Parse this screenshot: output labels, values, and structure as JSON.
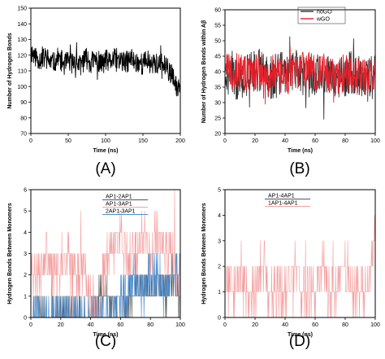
{
  "chart_data": [
    {
      "panel_label": "(A)",
      "type": "line",
      "xlabel": "Time (ns)",
      "ylabel": "Number of Hydrogen Bonds",
      "xlim": [
        0,
        200
      ],
      "ylim": [
        70,
        150
      ],
      "xticks": [
        0,
        50,
        100,
        150,
        200
      ],
      "yticks": [
        70,
        80,
        90,
        100,
        110,
        120,
        130,
        140,
        150
      ],
      "series": [
        {
          "color": "#000000",
          "x": [
            0,
            5,
            10,
            15,
            20,
            25,
            30,
            35,
            40,
            45,
            50,
            55,
            60,
            65,
            70,
            75,
            80,
            85,
            90,
            95,
            100,
            105,
            110,
            115,
            120,
            125,
            130,
            135,
            140,
            145,
            150,
            155,
            160,
            165,
            170,
            175,
            180,
            185,
            190,
            195,
            200
          ],
          "y": [
            122,
            120,
            118,
            117,
            119,
            116,
            115,
            118,
            117,
            114,
            116,
            115,
            117,
            113,
            116,
            118,
            115,
            117,
            116,
            114,
            117,
            115,
            118,
            116,
            117,
            115,
            116,
            118,
            115,
            116,
            114,
            117,
            115,
            116,
            113,
            115,
            112,
            110,
            106,
            98,
            104
          ]
        }
      ]
    },
    {
      "panel_label": "(B)",
      "type": "line",
      "xlabel": "Time (ns)",
      "ylabel": "Number of Hydrogen Bonds within Aβ",
      "xlim": [
        0,
        100
      ],
      "ylim": [
        20,
        60
      ],
      "xticks": [
        0,
        20,
        40,
        60,
        80,
        100
      ],
      "yticks": [
        20,
        25,
        30,
        35,
        40,
        45,
        50,
        55,
        60
      ],
      "legend": "top-right",
      "series": [
        {
          "name": "noGO",
          "color": "#333333",
          "x": [
            0,
            5,
            10,
            15,
            20,
            25,
            30,
            35,
            40,
            45,
            50,
            55,
            60,
            65,
            70,
            75,
            80,
            85,
            90,
            95,
            100
          ],
          "y": [
            40,
            38,
            37,
            39,
            41,
            40,
            38,
            39,
            40,
            41,
            40,
            38,
            39,
            40,
            38,
            37,
            39,
            40,
            38,
            37,
            39
          ]
        },
        {
          "name": "wGO",
          "color": "#e8202a",
          "x": [
            0,
            5,
            10,
            15,
            20,
            25,
            30,
            35,
            40,
            45,
            50,
            55,
            60,
            65,
            70,
            75,
            80,
            85,
            90,
            95,
            100
          ],
          "y": [
            42,
            40,
            41,
            39,
            40,
            41,
            39,
            40,
            38,
            39,
            40,
            41,
            39,
            40,
            39,
            38,
            40,
            39,
            38,
            39,
            40
          ]
        }
      ]
    },
    {
      "panel_label": "(C)",
      "type": "line",
      "xlabel": "Time (ns)",
      "ylabel": "Hydrogen Bonds Between Monomers",
      "xlim": [
        0,
        100
      ],
      "ylim": [
        0,
        6
      ],
      "xticks": [
        0,
        20,
        40,
        60,
        80,
        100
      ],
      "yticks": [
        0,
        1,
        2,
        3,
        4,
        5,
        6
      ],
      "legend": "top-right",
      "series": [
        {
          "name": "AP1-2AP1",
          "color": "#555555",
          "x": [
            0,
            10,
            20,
            30,
            40,
            45,
            50,
            55,
            60,
            65,
            70,
            75,
            80,
            85,
            90,
            95,
            100
          ],
          "y": [
            0,
            0,
            0,
            0,
            0,
            1,
            1,
            0,
            0,
            1,
            1,
            2,
            1,
            2,
            1,
            2,
            1
          ]
        },
        {
          "name": "AP1-3AP1",
          "color": "#f4a0a0",
          "x": [
            0,
            5,
            10,
            15,
            20,
            25,
            30,
            35,
            40,
            45,
            50,
            55,
            60,
            65,
            70,
            75,
            80,
            85,
            90,
            95,
            100
          ],
          "y": [
            2,
            2,
            3,
            2,
            2,
            3,
            2,
            2,
            1,
            0,
            3,
            3,
            4,
            3,
            3,
            4,
            3,
            4,
            3,
            3,
            2
          ]
        },
        {
          "name": "2AP1-3AP1",
          "color": "#4f8fd0",
          "x": [
            0,
            10,
            20,
            30,
            40,
            50,
            55,
            60,
            65,
            70,
            75,
            80,
            85,
            90,
            95,
            100
          ],
          "y": [
            0,
            0,
            0,
            0,
            0,
            0,
            0,
            1,
            1,
            2,
            1,
            2,
            2,
            1,
            2,
            2
          ]
        }
      ]
    },
    {
      "panel_label": "(D)",
      "type": "line",
      "xlabel": "Time (ns)",
      "ylabel": "Hydrogen Bonds Between Monomers",
      "xlim": [
        0,
        100
      ],
      "ylim": [
        0,
        5
      ],
      "xticks": [
        0,
        20,
        40,
        60,
        80,
        100
      ],
      "yticks": [
        0,
        1,
        2,
        3,
        4,
        5
      ],
      "legend": "top-right",
      "series": [
        {
          "name": "AP1-4AP1",
          "color": "#555555",
          "x": [
            0,
            20,
            40,
            60,
            80,
            100
          ],
          "y": [
            0,
            0,
            0,
            0,
            0,
            0
          ]
        },
        {
          "name": "1AP1-4AP1",
          "color": "#f4a0a0",
          "x": [
            0,
            5,
            10,
            15,
            20,
            25,
            30,
            35,
            40,
            45,
            50,
            55,
            60,
            65,
            70,
            75,
            80,
            85,
            90,
            95,
            100
          ],
          "y": [
            1,
            1,
            2,
            1,
            1,
            2,
            1,
            1,
            1,
            2,
            1,
            1,
            1,
            2,
            1,
            1,
            2,
            1,
            1,
            1,
            3
          ]
        }
      ]
    }
  ]
}
